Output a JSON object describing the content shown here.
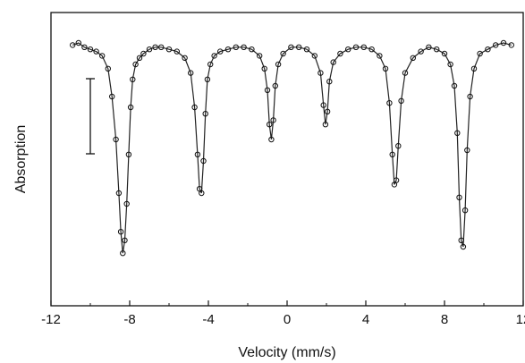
{
  "chart_data": {
    "type": "scatter",
    "title": "",
    "xlabel": "Velocity (mm/s)",
    "ylabel": "Absorption",
    "xlim": [
      -12,
      12
    ],
    "x_ticks": [
      -12,
      -8,
      -4,
      0,
      4,
      8,
      12
    ],
    "x_tick_labels": [
      "-12",
      "-8",
      "-4",
      "0",
      "4",
      "8",
      "12"
    ],
    "y_ticks_shown": false,
    "grid": false,
    "legend": "none",
    "scale_bar": "vertical error-bar style scale marker at upper left",
    "series": [
      {
        "style": "open-circles",
        "x": [
          -10.9,
          -10.6,
          -10.3,
          -10.0,
          -9.7,
          -9.4,
          -9.1,
          -8.9,
          -8.7,
          -8.55,
          -8.45,
          -8.35,
          -8.25,
          -8.15,
          -8.05,
          -7.95,
          -7.85,
          -7.7,
          -7.5,
          -7.3,
          -7.0,
          -6.7,
          -6.4,
          -6.0,
          -5.6,
          -5.2,
          -4.9,
          -4.7,
          -4.55,
          -4.45,
          -4.35,
          -4.25,
          -4.15,
          -4.05,
          -3.9,
          -3.7,
          -3.4,
          -3.0,
          -2.6,
          -2.2,
          -1.8,
          -1.4,
          -1.15,
          -1.0,
          -0.9,
          -0.8,
          -0.7,
          -0.6,
          -0.45,
          -0.2,
          0.2,
          0.6,
          1.0,
          1.4,
          1.7,
          1.85,
          1.95,
          2.05,
          2.15,
          2.35,
          2.7,
          3.1,
          3.5,
          3.9,
          4.3,
          4.7,
          5.0,
          5.2,
          5.35,
          5.45,
          5.55,
          5.65,
          5.8,
          6.0,
          6.4,
          6.8,
          7.2,
          7.6,
          8.0,
          8.3,
          8.5,
          8.65,
          8.75,
          8.85,
          8.95,
          9.05,
          9.15,
          9.3,
          9.5,
          9.8,
          10.2,
          10.6,
          11.0,
          11.4
        ],
        "y": [
          0.01,
          0.0,
          0.02,
          0.03,
          0.04,
          0.06,
          0.12,
          0.25,
          0.45,
          0.7,
          0.88,
          0.98,
          0.92,
          0.75,
          0.52,
          0.3,
          0.17,
          0.1,
          0.07,
          0.05,
          0.03,
          0.02,
          0.02,
          0.03,
          0.04,
          0.07,
          0.14,
          0.3,
          0.52,
          0.68,
          0.7,
          0.55,
          0.33,
          0.17,
          0.1,
          0.06,
          0.04,
          0.03,
          0.02,
          0.02,
          0.03,
          0.06,
          0.12,
          0.22,
          0.38,
          0.45,
          0.36,
          0.2,
          0.1,
          0.05,
          0.02,
          0.02,
          0.03,
          0.06,
          0.14,
          0.29,
          0.38,
          0.32,
          0.18,
          0.09,
          0.05,
          0.03,
          0.02,
          0.02,
          0.03,
          0.06,
          0.12,
          0.28,
          0.52,
          0.66,
          0.64,
          0.48,
          0.27,
          0.14,
          0.07,
          0.04,
          0.02,
          0.03,
          0.05,
          0.1,
          0.2,
          0.42,
          0.72,
          0.92,
          0.95,
          0.78,
          0.5,
          0.25,
          0.12,
          0.05,
          0.03,
          0.01,
          0.0,
          0.01
        ]
      }
    ]
  }
}
